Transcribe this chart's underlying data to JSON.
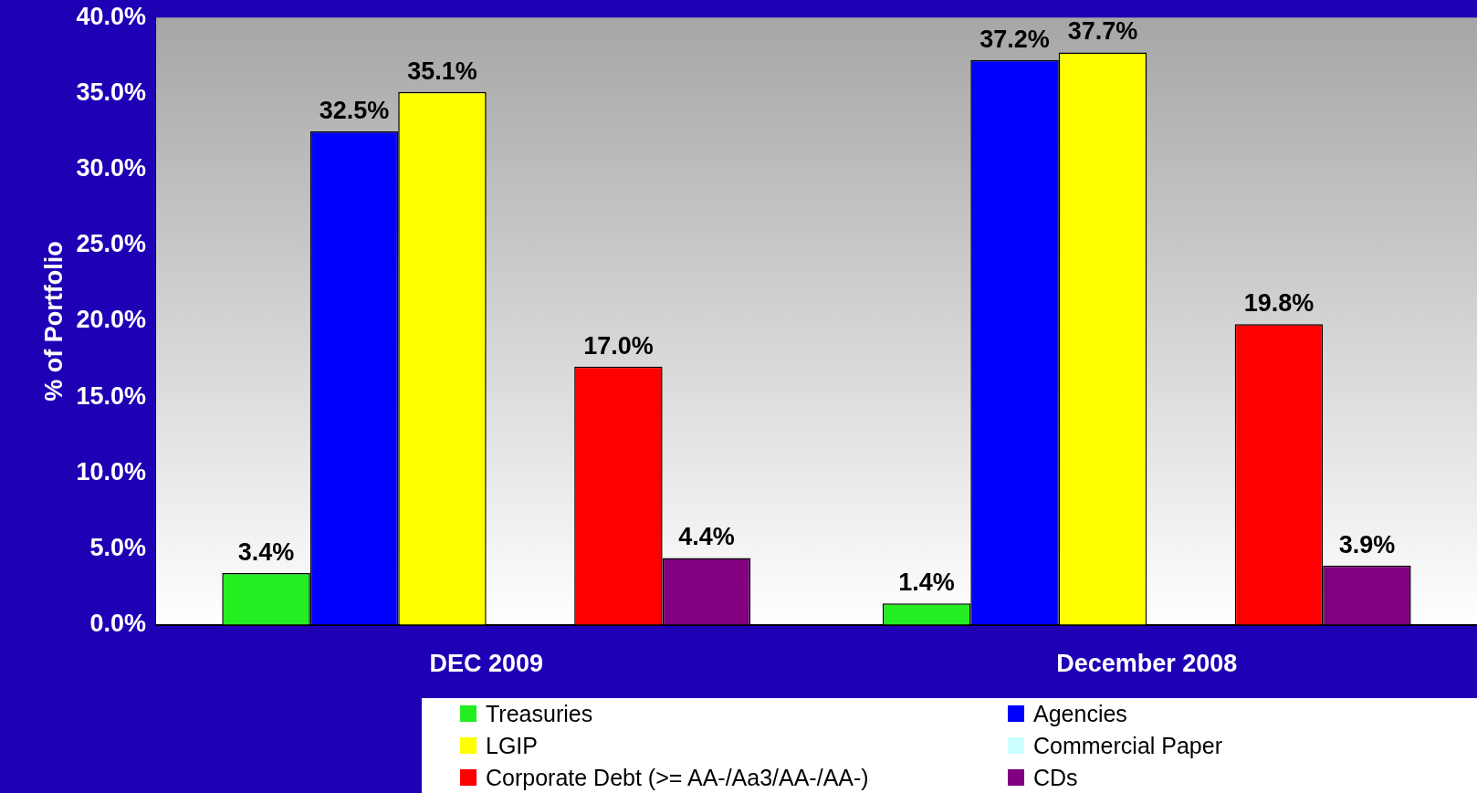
{
  "chart_data": {
    "type": "bar",
    "ylabel": "% of Portfolio",
    "categories": [
      "DEC 2009",
      "December 2008"
    ],
    "series": [
      {
        "name": "Treasuries",
        "color": "#22ee22",
        "values": [
          3.4,
          1.4
        ],
        "value_labels": [
          "3.4%",
          "1.4%"
        ]
      },
      {
        "name": "Agencies",
        "color": "#0000ff",
        "values": [
          32.5,
          37.2
        ],
        "value_labels": [
          "32.5%",
          "37.2%"
        ]
      },
      {
        "name": "LGIP",
        "color": "#ffff00",
        "values": [
          35.1,
          37.7
        ],
        "value_labels": [
          "35.1%",
          "37.7%"
        ]
      },
      {
        "name": "Commercial Paper",
        "color": "#ccffff",
        "values": [
          0,
          0
        ],
        "value_labels": [
          null,
          null
        ]
      },
      {
        "name": "Corporate Debt (>= AA-/Aa3/AA-/AA-)",
        "color": "#ff0000",
        "values": [
          17.0,
          19.8
        ],
        "value_labels": [
          "17.0%",
          "19.8%"
        ]
      },
      {
        "name": "CDs",
        "color": "#800080",
        "values": [
          4.4,
          3.9
        ],
        "value_labels": [
          "4.4%",
          "3.9%"
        ]
      }
    ],
    "ylim": [
      0,
      40
    ],
    "yticks": [
      {
        "value": 0,
        "label": "0.0%"
      },
      {
        "value": 5,
        "label": "5.0%"
      },
      {
        "value": 10,
        "label": "10.0%"
      },
      {
        "value": 15,
        "label": "15.0%"
      },
      {
        "value": 20,
        "label": "20.0%"
      },
      {
        "value": 25,
        "label": "25.0%"
      },
      {
        "value": 30,
        "label": "30.0%"
      },
      {
        "value": 35,
        "label": "35.0%"
      },
      {
        "value": 40,
        "label": "40.0%"
      }
    ],
    "grid": false,
    "legend": "bottom"
  }
}
